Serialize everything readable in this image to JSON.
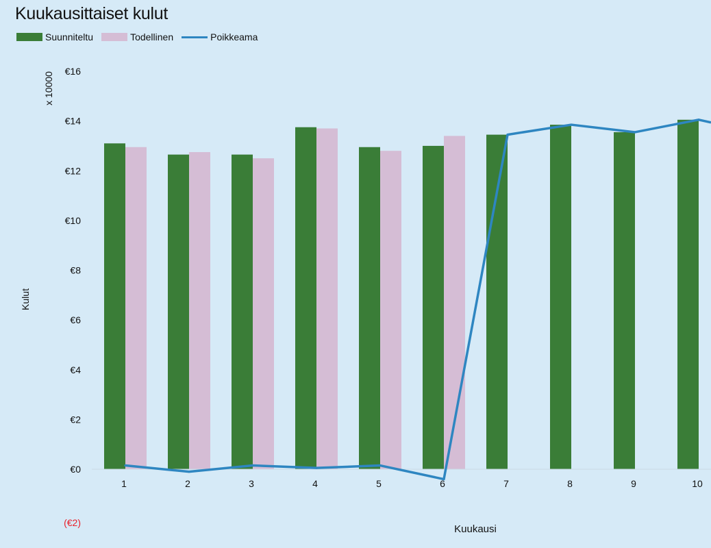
{
  "chart_data": {
    "type": "bar",
    "title": "Kuukausittaiset kulut",
    "xlabel": "Kuukausi",
    "ylabel": "Kulut",
    "y_unit_label": "x 10000",
    "categories": [
      "1",
      "2",
      "3",
      "4",
      "5",
      "6",
      "7",
      "8",
      "9",
      "10"
    ],
    "series": [
      {
        "name": "Suunniteltu",
        "kind": "bar",
        "color": "#3a7d37",
        "values": [
          13.1,
          12.65,
          12.65,
          13.75,
          12.95,
          13.0,
          13.45,
          13.85,
          13.55,
          14.05
        ]
      },
      {
        "name": "Todellinen",
        "kind": "bar",
        "color": "#d5bdd5",
        "values": [
          12.95,
          12.75,
          12.5,
          13.7,
          12.8,
          13.4,
          null,
          null,
          null,
          null
        ]
      },
      {
        "name": "Poikkeama",
        "kind": "line",
        "color": "#2e86c1",
        "values": [
          0.15,
          -0.1,
          0.15,
          0.05,
          0.15,
          -0.4,
          13.45,
          13.85,
          13.55,
          14.05
        ]
      }
    ],
    "y_ticks": [
      {
        "value": 16,
        "label": "€16"
      },
      {
        "value": 14,
        "label": "€14"
      },
      {
        "value": 12,
        "label": "€12"
      },
      {
        "value": 10,
        "label": "€10"
      },
      {
        "value": 8,
        "label": "€8"
      },
      {
        "value": 6,
        "label": "€6"
      },
      {
        "value": 4,
        "label": "€4"
      },
      {
        "value": 2,
        "label": "€2"
      },
      {
        "value": 0,
        "label": "€0"
      },
      {
        "value": -2,
        "label": "(€2)",
        "color": "#e8202a"
      }
    ],
    "ylim": [
      -2,
      16
    ],
    "grid": false,
    "legend_position": "top-left"
  }
}
